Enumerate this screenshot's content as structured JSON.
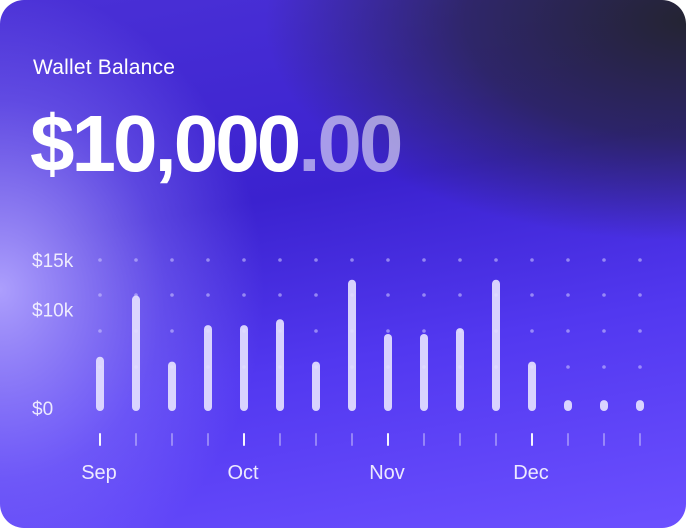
{
  "card": {
    "title": "Wallet Balance",
    "balance_main": "$10,000",
    "balance_cents": ".00"
  },
  "chart_data": {
    "type": "bar",
    "title": "",
    "xlabel": "",
    "ylabel": "",
    "ylim": [
      0,
      15000
    ],
    "ytick_labels": [
      "$15k",
      "$10k",
      "$0"
    ],
    "ytick_values": [
      15000,
      10000,
      0
    ],
    "month_labels": [
      "Sep",
      "Oct",
      "Nov",
      "Dec"
    ],
    "month_label_bar_index": [
      0,
      4,
      8,
      12
    ],
    "values": [
      5200,
      11400,
      4700,
      8400,
      8400,
      9000,
      4700,
      13000,
      7500,
      7500,
      8100,
      13000,
      4700,
      800,
      800,
      800
    ],
    "grid": "dotted",
    "colors": {
      "bar": "#e4e0ff",
      "dot": "#c8c0ff"
    }
  }
}
